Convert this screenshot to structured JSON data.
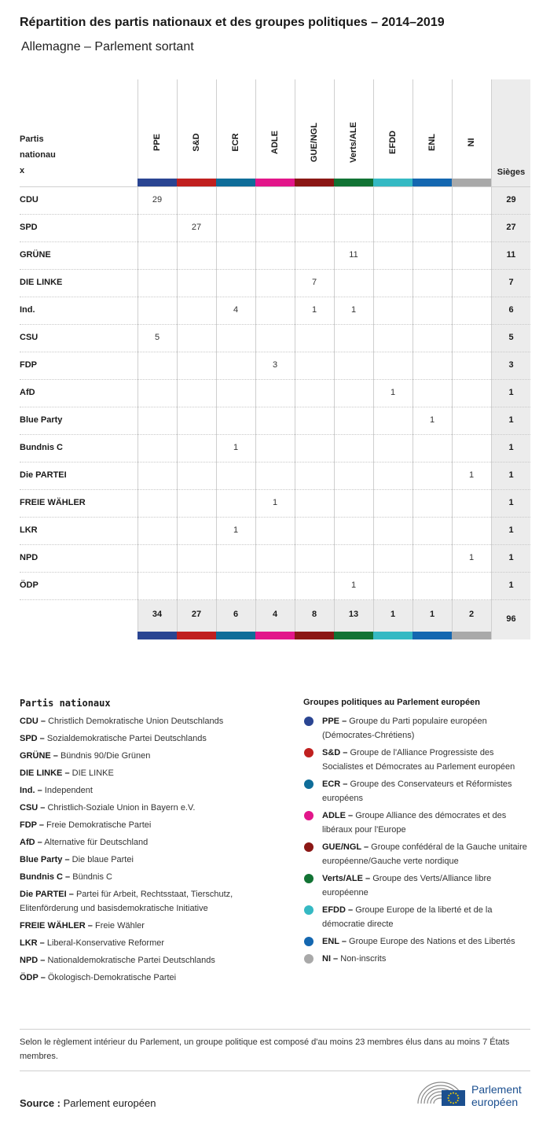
{
  "title": "Répartition des partis nationaux et des groupes politiques – 2014–2019",
  "subtitle": "Allemagne – Parlement sortant",
  "table": {
    "party_header": [
      "Partis",
      "nationau",
      "x"
    ],
    "seats_header": "Sièges",
    "groups": [
      {
        "label": "PPE",
        "color": "#2a4592",
        "total": "34"
      },
      {
        "label": "S&D",
        "color": "#c0201f",
        "total": "27"
      },
      {
        "label": "ECR",
        "color": "#0f6d99",
        "total": "6"
      },
      {
        "label": "ADLE",
        "color": "#e2168a",
        "total": "4"
      },
      {
        "label": "GUE/NGL",
        "color": "#8b1715",
        "total": "8"
      },
      {
        "label": "Verts/ALE",
        "color": "#127334",
        "total": "13"
      },
      {
        "label": "EFDD",
        "color": "#35b9c3",
        "total": "1"
      },
      {
        "label": "ENL",
        "color": "#1467b0",
        "total": "1"
      },
      {
        "label": "NI",
        "color": "#a9a9a9",
        "total": "2"
      }
    ],
    "grand_total": "96",
    "rows": [
      {
        "party": "CDU",
        "cells": [
          "29",
          "",
          "",
          "",
          "",
          "",
          "",
          "",
          ""
        ],
        "seats": "29"
      },
      {
        "party": "SPD",
        "cells": [
          "",
          "27",
          "",
          "",
          "",
          "",
          "",
          "",
          ""
        ],
        "seats": "27"
      },
      {
        "party": "GRÜNE",
        "cells": [
          "",
          "",
          "",
          "",
          "",
          "11",
          "",
          "",
          ""
        ],
        "seats": "11"
      },
      {
        "party": "DIE LINKE",
        "cells": [
          "",
          "",
          "",
          "",
          "7",
          "",
          "",
          "",
          ""
        ],
        "seats": "7"
      },
      {
        "party": "Ind.",
        "cells": [
          "",
          "",
          "4",
          "",
          "1",
          "1",
          "",
          "",
          ""
        ],
        "seats": "6"
      },
      {
        "party": "CSU",
        "cells": [
          "5",
          "",
          "",
          "",
          "",
          "",
          "",
          "",
          ""
        ],
        "seats": "5"
      },
      {
        "party": "FDP",
        "cells": [
          "",
          "",
          "",
          "3",
          "",
          "",
          "",
          "",
          ""
        ],
        "seats": "3"
      },
      {
        "party": "AfD",
        "cells": [
          "",
          "",
          "",
          "",
          "",
          "",
          "1",
          "",
          ""
        ],
        "seats": "1"
      },
      {
        "party": "Blue Party",
        "cells": [
          "",
          "",
          "",
          "",
          "",
          "",
          "",
          "1",
          ""
        ],
        "seats": "1"
      },
      {
        "party": "Bundnis C",
        "cells": [
          "",
          "",
          "1",
          "",
          "",
          "",
          "",
          "",
          ""
        ],
        "seats": "1"
      },
      {
        "party": "Die PARTEI",
        "cells": [
          "",
          "",
          "",
          "",
          "",
          "",
          "",
          "",
          "1"
        ],
        "seats": "1"
      },
      {
        "party": "FREIE WÄHLER",
        "cells": [
          "",
          "",
          "",
          "1",
          "",
          "",
          "",
          "",
          ""
        ],
        "seats": "1"
      },
      {
        "party": "LKR",
        "cells": [
          "",
          "",
          "1",
          "",
          "",
          "",
          "",
          "",
          ""
        ],
        "seats": "1"
      },
      {
        "party": "NPD",
        "cells": [
          "",
          "",
          "",
          "",
          "",
          "",
          "",
          "",
          "1"
        ],
        "seats": "1"
      },
      {
        "party": "ÖDP",
        "cells": [
          "",
          "",
          "",
          "",
          "",
          "1",
          "",
          "",
          ""
        ],
        "seats": "1"
      }
    ]
  },
  "legend_parties": {
    "heading": "Partis nationaux",
    "items": [
      {
        "abbr": "CDU –",
        "name": "Christlich Demokratische Union Deutschlands"
      },
      {
        "abbr": "SPD –",
        "name": "Sozialdemokratische Partei Deutschlands"
      },
      {
        "abbr": "GRÜNE –",
        "name": "Bündnis 90/Die Grünen"
      },
      {
        "abbr": "DIE LINKE –",
        "name": "DIE LINKE"
      },
      {
        "abbr": "Ind. –",
        "name": "Independent"
      },
      {
        "abbr": "CSU –",
        "name": "Christlich-Soziale Union in Bayern e.V."
      },
      {
        "abbr": "FDP –",
        "name": "Freie Demokratische Partei"
      },
      {
        "abbr": "AfD –",
        "name": "Alternative für Deutschland"
      },
      {
        "abbr": "Blue Party –",
        "name": "Die blaue Partei"
      },
      {
        "abbr": "Bundnis C –",
        "name": "Bündnis C"
      },
      {
        "abbr": "Die PARTEI –",
        "name": "Partei für Arbeit, Rechtsstaat, Tierschutz, Elitenförderung und basisdemokratische Initiative"
      },
      {
        "abbr": "FREIE WÄHLER –",
        "name": "Freie Wähler"
      },
      {
        "abbr": "LKR –",
        "name": "Liberal-Konservative Reformer"
      },
      {
        "abbr": "NPD –",
        "name": "Nationaldemokratische Partei Deutschlands"
      },
      {
        "abbr": "ÖDP –",
        "name": "Ökologisch-Demokratische Partei"
      }
    ]
  },
  "legend_groups": {
    "heading": "Groupes politiques au Parlement européen",
    "items": [
      {
        "abbr": "PPE –",
        "name": "Groupe du Parti populaire européen (Démocrates-Chrétiens)",
        "color": "#2a4592"
      },
      {
        "abbr": "S&D –",
        "name": "Groupe de l'Alliance Progressiste des Socialistes et Démocrates au Parlement européen",
        "color": "#c0201f"
      },
      {
        "abbr": "ECR –",
        "name": "Groupe des Conservateurs et Réformistes européens",
        "color": "#0f6d99"
      },
      {
        "abbr": "ADLE –",
        "name": "Groupe Alliance des démocrates et des libéraux pour l'Europe",
        "color": "#e2168a"
      },
      {
        "abbr": "GUE/NGL –",
        "name": "Groupe confédéral de la Gauche unitaire européenne/Gauche verte nordique",
        "color": "#8b1715"
      },
      {
        "abbr": "Verts/ALE –",
        "name": "Groupe des Verts/Alliance libre européenne",
        "color": "#127334"
      },
      {
        "abbr": "EFDD –",
        "name": "Groupe Europe de la liberté et de la démocratie directe",
        "color": "#35b9c3"
      },
      {
        "abbr": "ENL –",
        "name": "Groupe Europe des Nations et des Libertés",
        "color": "#1467b0"
      },
      {
        "abbr": "NI –",
        "name": "Non-inscrits",
        "color": "#a9a9a9"
      }
    ]
  },
  "note": "Selon le règlement intérieur du Parlement, un groupe politique est composé d'au moins 23 membres élus dans au moins 7 États membres.",
  "source": {
    "label": "Source :",
    "value": "Parlement européen"
  },
  "logo": {
    "line1": "Parlement",
    "line2": "européen",
    "icon": "european-parliament-logo-icon"
  }
}
